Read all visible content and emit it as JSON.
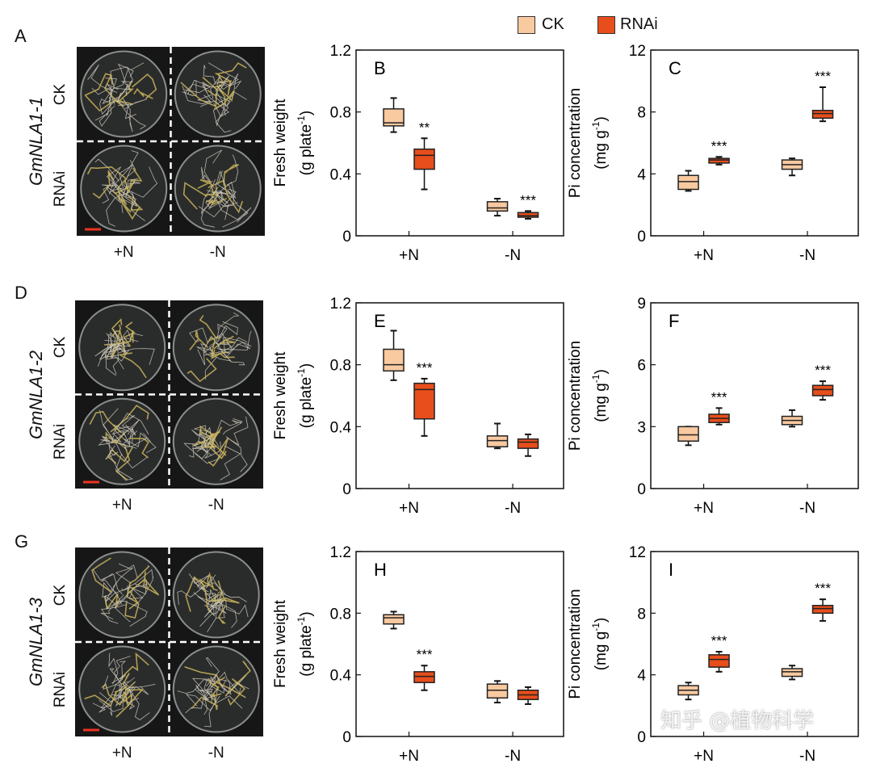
{
  "legend": {
    "items": [
      {
        "label": "CK",
        "color": "#f9c9a0"
      },
      {
        "label": "RNAi",
        "color": "#e84e1b"
      }
    ]
  },
  "photo_rows": [
    {
      "letter": "A",
      "gene": "GmNLA1-1",
      "row_labels": [
        "CK",
        "RNAi"
      ],
      "col_labels": [
        "+N",
        "-N"
      ]
    },
    {
      "letter": "D",
      "gene": "GmNLA1-2",
      "row_labels": [
        "CK",
        "RNAi"
      ],
      "col_labels": [
        "+N",
        "-N"
      ]
    },
    {
      "letter": "G",
      "gene": "GmNLA1-3",
      "row_labels": [
        "CK",
        "RNAi"
      ],
      "col_labels": [
        "+N",
        "-N"
      ]
    }
  ],
  "watermark": "知乎 @植物科学",
  "chart_data": [
    {
      "type": "box",
      "panel": "B",
      "ylabel": "Fresh weight",
      "yunit": "(g plate",
      "yunit_sup": "-1",
      "yunit_close": ")",
      "ylim": [
        0,
        1.2
      ],
      "yticks": [
        "0",
        "0.4",
        "0.8",
        "1.2"
      ],
      "ytick_values": [
        0,
        0.4,
        0.8,
        1.2
      ],
      "categories": [
        "+N",
        "-N"
      ],
      "series": [
        {
          "name": "CK",
          "boxes": [
            {
              "min": 0.67,
              "q1": 0.71,
              "median": 0.73,
              "q3": 0.82,
              "max": 0.89
            },
            {
              "min": 0.13,
              "q1": 0.16,
              "median": 0.18,
              "q3": 0.22,
              "max": 0.24
            }
          ]
        },
        {
          "name": "RNAi",
          "boxes": [
            {
              "min": 0.3,
              "q1": 0.43,
              "median": 0.52,
              "q3": 0.56,
              "max": 0.63
            },
            {
              "min": 0.11,
              "q1": 0.12,
              "median": 0.13,
              "q3": 0.15,
              "max": 0.16
            }
          ]
        }
      ],
      "significance": [
        {
          "series": "RNAi",
          "category": "+N",
          "label": "**"
        },
        {
          "series": "RNAi",
          "category": "-N",
          "label": "***"
        }
      ]
    },
    {
      "type": "box",
      "panel": "C",
      "ylabel": "Pi concentration",
      "yunit": "(mg g",
      "yunit_sup": "-1",
      "yunit_close": ")",
      "ylim": [
        0,
        12
      ],
      "yticks": [
        "0",
        "4",
        "8",
        "12"
      ],
      "ytick_values": [
        0,
        4,
        8,
        12
      ],
      "categories": [
        "+N",
        "-N"
      ],
      "series": [
        {
          "name": "CK",
          "boxes": [
            {
              "min": 2.9,
              "q1": 3.0,
              "median": 3.5,
              "q3": 3.9,
              "max": 4.2
            },
            {
              "min": 3.9,
              "q1": 4.3,
              "median": 4.6,
              "q3": 4.9,
              "max": 5.0
            }
          ]
        },
        {
          "name": "RNAi",
          "boxes": [
            {
              "min": 4.6,
              "q1": 4.7,
              "median": 4.9,
              "q3": 5.0,
              "max": 5.1
            },
            {
              "min": 7.4,
              "q1": 7.6,
              "median": 7.9,
              "q3": 8.1,
              "max": 9.6
            }
          ]
        }
      ],
      "significance": [
        {
          "series": "RNAi",
          "category": "+N",
          "label": "***"
        },
        {
          "series": "RNAi",
          "category": "-N",
          "label": "***"
        }
      ]
    },
    {
      "type": "box",
      "panel": "E",
      "ylabel": "Fresh weight",
      "yunit": "(g plate",
      "yunit_sup": "-1",
      "yunit_close": ")",
      "ylim": [
        0,
        1.2
      ],
      "yticks": [
        "0",
        "0.4",
        "0.8",
        "1.2"
      ],
      "ytick_values": [
        0,
        0.4,
        0.8,
        1.2
      ],
      "categories": [
        "+N",
        "-N"
      ],
      "series": [
        {
          "name": "CK",
          "boxes": [
            {
              "min": 0.7,
              "q1": 0.76,
              "median": 0.8,
              "q3": 0.9,
              "max": 1.02
            },
            {
              "min": 0.26,
              "q1": 0.27,
              "median": 0.31,
              "q3": 0.34,
              "max": 0.42
            }
          ]
        },
        {
          "name": "RNAi",
          "boxes": [
            {
              "min": 0.34,
              "q1": 0.45,
              "median": 0.64,
              "q3": 0.68,
              "max": 0.71
            },
            {
              "min": 0.21,
              "q1": 0.26,
              "median": 0.3,
              "q3": 0.32,
              "max": 0.35
            }
          ]
        }
      ],
      "significance": [
        {
          "series": "RNAi",
          "category": "+N",
          "label": "***"
        }
      ]
    },
    {
      "type": "box",
      "panel": "F",
      "ylabel": "Pi concentration",
      "yunit": "(mg g",
      "yunit_sup": "-1",
      "yunit_close": ")",
      "ylim": [
        0,
        9
      ],
      "yticks": [
        "0",
        "3",
        "6",
        "9"
      ],
      "ytick_values": [
        0,
        3,
        6,
        9
      ],
      "categories": [
        "+N",
        "-N"
      ],
      "series": [
        {
          "name": "CK",
          "boxes": [
            {
              "min": 2.1,
              "q1": 2.3,
              "median": 2.6,
              "q3": 3.0,
              "max": 3.0
            },
            {
              "min": 3.0,
              "q1": 3.1,
              "median": 3.3,
              "q3": 3.5,
              "max": 3.8
            }
          ]
        },
        {
          "name": "RNAi",
          "boxes": [
            {
              "min": 3.1,
              "q1": 3.2,
              "median": 3.4,
              "q3": 3.6,
              "max": 3.9
            },
            {
              "min": 4.3,
              "q1": 4.5,
              "median": 4.8,
              "q3": 5.0,
              "max": 5.2
            }
          ]
        }
      ],
      "significance": [
        {
          "series": "RNAi",
          "category": "+N",
          "label": "***"
        },
        {
          "series": "RNAi",
          "category": "-N",
          "label": "***"
        }
      ]
    },
    {
      "type": "box",
      "panel": "H",
      "ylabel": "Fresh weight",
      "yunit": "(g plate",
      "yunit_sup": "-1",
      "yunit_close": ")",
      "ylim": [
        0,
        1.2
      ],
      "yticks": [
        "0",
        "0.4",
        "0.8",
        "1.2"
      ],
      "ytick_values": [
        0,
        0.4,
        0.8,
        1.2
      ],
      "categories": [
        "+N",
        "-N"
      ],
      "series": [
        {
          "name": "CK",
          "boxes": [
            {
              "min": 0.7,
              "q1": 0.73,
              "median": 0.77,
              "q3": 0.79,
              "max": 0.81
            },
            {
              "min": 0.22,
              "q1": 0.25,
              "median": 0.3,
              "q3": 0.34,
              "max": 0.36
            }
          ]
        },
        {
          "name": "RNAi",
          "boxes": [
            {
              "min": 0.3,
              "q1": 0.35,
              "median": 0.39,
              "q3": 0.42,
              "max": 0.46
            },
            {
              "min": 0.21,
              "q1": 0.24,
              "median": 0.27,
              "q3": 0.3,
              "max": 0.32
            }
          ]
        }
      ],
      "significance": [
        {
          "series": "RNAi",
          "category": "+N",
          "label": "***"
        }
      ]
    },
    {
      "type": "box",
      "panel": "I",
      "ylabel": "Pi concentration",
      "yunit": "(mg g",
      "yunit_sup": "-1",
      "yunit_close": ")",
      "ylim": [
        0,
        12
      ],
      "yticks": [
        "0",
        "4",
        "8",
        "12"
      ],
      "ytick_values": [
        0,
        4,
        8,
        12
      ],
      "categories": [
        "+N",
        "-N"
      ],
      "series": [
        {
          "name": "CK",
          "boxes": [
            {
              "min": 2.4,
              "q1": 2.7,
              "median": 3.0,
              "q3": 3.3,
              "max": 3.5
            },
            {
              "min": 3.7,
              "q1": 3.9,
              "median": 4.2,
              "q3": 4.4,
              "max": 4.6
            }
          ]
        },
        {
          "name": "RNAi",
          "boxes": [
            {
              "min": 4.2,
              "q1": 4.5,
              "median": 5.0,
              "q3": 5.3,
              "max": 5.5
            },
            {
              "min": 7.5,
              "q1": 8.0,
              "median": 8.3,
              "q3": 8.5,
              "max": 8.9
            }
          ]
        }
      ],
      "significance": [
        {
          "series": "RNAi",
          "category": "+N",
          "label": "***"
        },
        {
          "series": "RNAi",
          "category": "-N",
          "label": "***"
        }
      ]
    }
  ]
}
